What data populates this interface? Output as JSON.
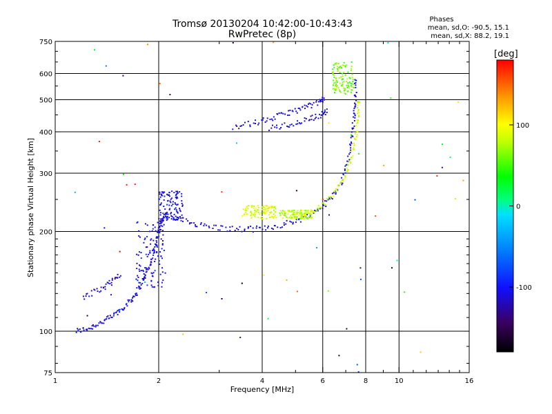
{
  "chart_data": {
    "type": "scatter",
    "title": "Tromsø 20130204 10:42:00-10:43:43",
    "subtitle": "RwPretec (8p)",
    "xlabel": "Frequency [MHz]",
    "ylabel": "Stationary phase Virtual Height [km]",
    "x_scale": "log",
    "y_scale": "log",
    "xlim": [
      1,
      16
    ],
    "ylim": [
      75,
      750
    ],
    "x_ticks": [
      "1",
      "2",
      "4",
      "6",
      "8",
      "10",
      "16"
    ],
    "y_ticks": [
      "75",
      "100",
      "200",
      "300",
      "400",
      "500",
      "600",
      "750"
    ],
    "x_gridlines": [
      2,
      4,
      6,
      8,
      10
    ],
    "y_gridlines": [
      100,
      200,
      300,
      400,
      500,
      600
    ],
    "stats": {
      "header": "Phases",
      "line_o": "mean, sd,O: -90.5, 15.1",
      "line_x": "mean, sd,X:  88.2, 19.1"
    },
    "colorbar": {
      "unit": "[deg]",
      "range": [
        -180,
        180
      ],
      "ticks": [
        "100",
        "0",
        "-100"
      ],
      "tick_values": [
        100,
        0,
        -100
      ]
    },
    "traces": [
      {
        "points": [
          [
            1.15,
            100
          ],
          [
            1.25,
            102
          ],
          [
            1.35,
            106
          ],
          [
            1.45,
            110
          ],
          [
            1.55,
            116
          ],
          [
            1.65,
            123
          ],
          [
            1.72,
            131
          ],
          [
            1.8,
            142
          ],
          [
            1.87,
            155
          ],
          [
            1.93,
            172
          ],
          [
            1.98,
            192
          ],
          [
            2.02,
            212
          ],
          [
            2.08,
            222
          ],
          [
            2.3,
            218
          ],
          [
            2.6,
            210
          ],
          [
            3.0,
            205
          ],
          [
            3.5,
            203
          ],
          [
            4.0,
            204
          ],
          [
            4.6,
            210
          ],
          [
            5.2,
            218
          ],
          [
            5.8,
            232
          ],
          [
            6.3,
            250
          ],
          [
            6.8,
            280
          ],
          [
            7.1,
            325
          ],
          [
            7.3,
            380
          ],
          [
            7.4,
            440
          ],
          [
            7.45,
            495
          ],
          [
            7.5,
            590
          ]
        ],
        "phase": -110
      },
      {
        "points": [
          [
            5.2,
            223
          ],
          [
            5.6,
            230
          ],
          [
            6.0,
            240
          ],
          [
            6.5,
            262
          ],
          [
            7.0,
            295
          ],
          [
            7.3,
            340
          ],
          [
            7.5,
            390
          ],
          [
            7.6,
            450
          ],
          [
            7.65,
            505
          ]
        ],
        "phase": 85
      },
      {
        "points": [
          [
            3.3,
            415
          ],
          [
            3.8,
            425
          ],
          [
            4.3,
            440
          ],
          [
            4.8,
            458
          ],
          [
            5.3,
            472
          ],
          [
            5.8,
            490
          ],
          [
            6.1,
            505
          ]
        ],
        "phase": -110
      },
      {
        "points": [
          [
            4.2,
            410
          ],
          [
            4.8,
            420
          ],
          [
            5.4,
            435
          ],
          [
            5.9,
            450
          ],
          [
            6.2,
            462
          ]
        ],
        "phase": -110
      },
      {
        "points": [
          [
            1.2,
            126
          ],
          [
            1.35,
            134
          ],
          [
            1.45,
            140
          ],
          [
            1.55,
            150
          ]
        ],
        "phase": -115
      }
    ],
    "clusters": [
      {
        "x": [
          1.72,
          2.1
        ],
        "y": [
          135,
          215
        ],
        "phase": -105
      },
      {
        "x": [
          2.0,
          2.35
        ],
        "y": [
          215,
          265
        ],
        "phase": -108
      },
      {
        "x": [
          3.5,
          4.4
        ],
        "y": [
          218,
          240
        ],
        "phase": 90
      },
      {
        "x": [
          4.5,
          5.6
        ],
        "y": [
          218,
          232
        ],
        "phase": 80
      },
      {
        "x": [
          6.4,
          7.4
        ],
        "y": [
          520,
          650
        ],
        "phase": 60
      }
    ]
  }
}
